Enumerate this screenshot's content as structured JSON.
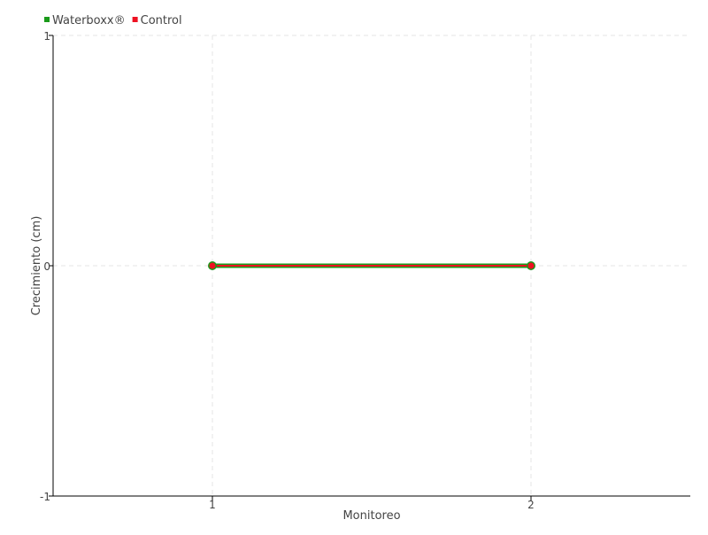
{
  "chart_data": {
    "type": "line",
    "xlabel": "Monitoreo",
    "ylabel": "Crecimiento (cm)",
    "x": [
      1,
      2
    ],
    "xlim": [
      0.5,
      2.5
    ],
    "ylim": [
      -1,
      1
    ],
    "yticks": [
      1,
      0,
      -1
    ],
    "xticks": [
      1,
      2
    ],
    "grid": true,
    "legend": "top-left",
    "series": [
      {
        "name": "Waterboxx®",
        "values": [
          0,
          0
        ],
        "color": "#1a9a1a"
      },
      {
        "name": "Control",
        "values": [
          0,
          0
        ],
        "color": "#ee1122"
      }
    ]
  }
}
